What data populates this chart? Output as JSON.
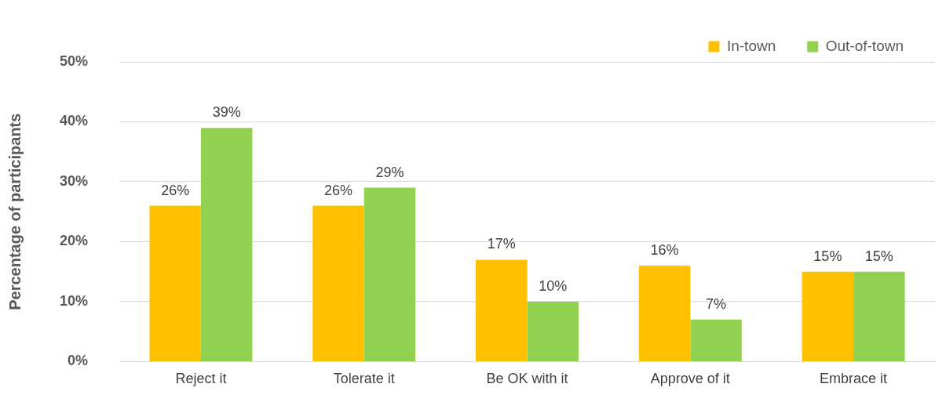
{
  "chart_data": {
    "type": "bar",
    "ylabel": "Percentage of participants",
    "categories": [
      "Reject it",
      "Tolerate it",
      "Be OK with it",
      "Approve of it",
      "Embrace it"
    ],
    "series": [
      {
        "name": "In-town",
        "color": "#ffc000",
        "values": [
          26,
          26,
          17,
          16,
          15
        ],
        "value_labels": [
          "26%",
          "26%",
          "17%",
          "16%",
          "15%"
        ]
      },
      {
        "name": "Out-of-town",
        "color": "#92d050",
        "values": [
          39,
          29,
          10,
          7,
          15
        ],
        "value_labels": [
          "39%",
          "29%",
          "10%",
          "7%",
          "15%"
        ]
      }
    ],
    "ylim": [
      0,
      50
    ],
    "yticks": [
      {
        "value": 0,
        "label": "0%"
      },
      {
        "value": 10,
        "label": "10%"
      },
      {
        "value": 20,
        "label": "20%"
      },
      {
        "value": 30,
        "label": "30%"
      },
      {
        "value": 40,
        "label": "40%"
      },
      {
        "value": 50,
        "label": "50%"
      }
    ],
    "grid": "y",
    "legend": "top right"
  }
}
